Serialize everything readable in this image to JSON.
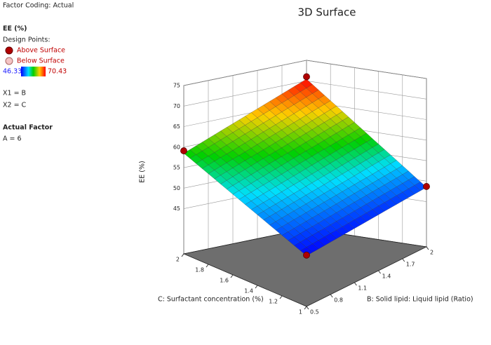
{
  "sidebar": {
    "coding": "Factor Coding: Actual",
    "x1": "X1 = B",
    "x2": "X2 = C",
    "actual_title": "Actual Factor",
    "actual": "A = 6"
  },
  "legend": {
    "title": "EE (%)",
    "subtitle": "Design Points:",
    "above": "Above Surface",
    "below": "Below Surface",
    "range": [
      46.33,
      70.43
    ]
  },
  "chart_data": {
    "type": "surface3d",
    "title": "3D Surface",
    "xlabel": "B: Solid lipid: Liquid lipid (Ratio)",
    "ylabel": "C: Surfactant concentration (%)",
    "zlabel": "EE (%)",
    "x": [
      0.5,
      0.8,
      1.1,
      1.4,
      1.7,
      2
    ],
    "y": [
      1,
      1.2,
      1.4,
      1.6,
      1.8,
      2
    ],
    "z": [
      [
        46.33,
        46.76,
        47.2,
        47.63,
        48.07,
        48.5
      ],
      [
        48.76,
        49.59,
        50.41,
        51.24,
        52.06,
        52.89
      ],
      [
        51.2,
        52.41,
        53.63,
        54.84,
        56.06,
        57.27
      ],
      [
        53.63,
        55.24,
        56.84,
        58.45,
        60.05,
        61.66
      ],
      [
        56.07,
        58.06,
        60.06,
        62.05,
        64.05,
        66.05
      ],
      [
        58.5,
        60.89,
        63.27,
        65.66,
        68.04,
        70.43
      ]
    ],
    "xlim": [
      0.5,
      2
    ],
    "ylim": [
      1,
      2
    ],
    "zlim": [
      34,
      75
    ],
    "xticks": [
      0.5,
      0.8,
      1.1,
      1.4,
      1.7,
      2
    ],
    "yticks": [
      1,
      1.2,
      1.4,
      1.6,
      1.8,
      2
    ],
    "zticks": [
      45,
      50,
      55,
      60,
      65,
      70,
      75
    ],
    "design_points": [
      {
        "x": 0.5,
        "y": 1,
        "z": 46.5
      },
      {
        "x": 2,
        "y": 1,
        "z": 48.7
      },
      {
        "x": 0.5,
        "y": 2,
        "z": 59.1
      },
      {
        "x": 2,
        "y": 2,
        "z": 71.0
      }
    ],
    "point_color": "#b00000"
  }
}
